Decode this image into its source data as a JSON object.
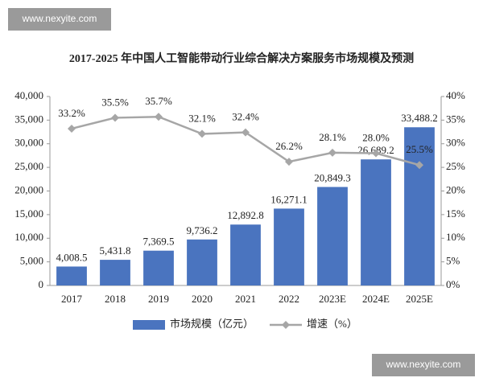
{
  "watermarks": [
    "www.nexyite.com",
    "www.nexyite.com"
  ],
  "chart_data": {
    "type": "bar-line",
    "title": "2017-2025 年中国人工智能带动行业综合解决方案服务市场规模及预测",
    "categories": [
      "2017",
      "2018",
      "2019",
      "2020",
      "2021",
      "2022",
      "2023E",
      "2024E",
      "2025E"
    ],
    "series": [
      {
        "name": "市场规模（亿元）",
        "type": "bar",
        "color": "#4a74bf",
        "values": [
          4008.5,
          5431.8,
          7369.5,
          9736.2,
          12892.8,
          16271.1,
          20849.3,
          26689.2,
          33488.2
        ],
        "value_labels": [
          "4,008.5",
          "5,431.8",
          "7,369.5",
          "9,736.2",
          "12,892.8",
          "16,271.1",
          "20,849.3",
          "26,689.2",
          "33,488.2"
        ]
      },
      {
        "name": "增速（%）",
        "type": "line",
        "axis": "y2",
        "color": "#a6a6a6",
        "values": [
          33.2,
          35.5,
          35.7,
          32.1,
          32.4,
          26.2,
          28.1,
          28.0,
          25.5
        ],
        "value_labels": [
          "33.2%",
          "35.5%",
          "35.7%",
          "32.1%",
          "32.4%",
          "26.2%",
          "28.1%",
          "28.0%",
          "25.5%"
        ]
      }
    ],
    "ylim": [
      0,
      40000
    ],
    "yticks": [
      0,
      {
        "value": 5000,
        "label": "5,000"
      },
      {
        "value": 10000,
        "label": "10,000"
      },
      {
        "value": 15000,
        "label": "15,000"
      },
      {
        "value": 20000,
        "label": "20,000"
      },
      {
        "value": 25000,
        "label": "25,000"
      },
      {
        "value": 30000,
        "label": "30,000"
      },
      {
        "value": 35000,
        "label": "35,000"
      },
      {
        "value": 40000,
        "label": "40,000"
      }
    ],
    "y2lim": [
      0,
      40
    ],
    "y2ticks": [
      {
        "value": 0,
        "label": "0%"
      },
      {
        "value": 5,
        "label": "5%"
      },
      {
        "value": 10,
        "label": "10%"
      },
      {
        "value": 15,
        "label": "15%"
      },
      {
        "value": 20,
        "label": "20%"
      },
      {
        "value": 25,
        "label": "25%"
      },
      {
        "value": 30,
        "label": "30%"
      },
      {
        "value": 35,
        "label": "35%"
      },
      {
        "value": 40,
        "label": "40%"
      }
    ],
    "legend": "bottom"
  }
}
